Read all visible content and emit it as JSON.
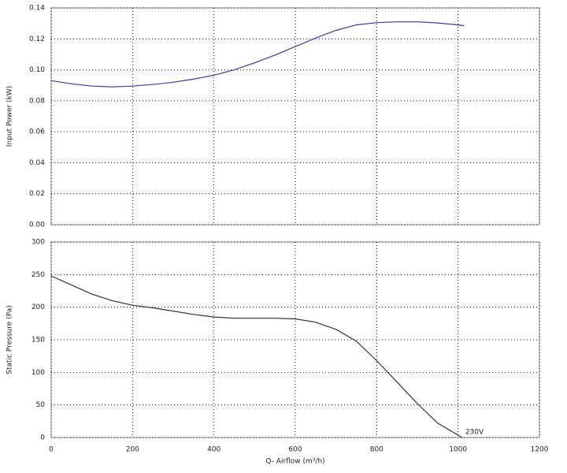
{
  "chart_data": [
    {
      "type": "line",
      "ylabel": "Input Power (kW)",
      "xlim": [
        0,
        1200
      ],
      "ylim": [
        0,
        0.14
      ],
      "yticks": [
        {
          "value": 0,
          "label": "0.00"
        },
        0.02,
        0.04,
        0.06,
        0.08,
        {
          "value": 0.1,
          "label": "0.10"
        },
        0.12,
        0.14
      ],
      "grid": true,
      "x": [
        0,
        50,
        100,
        150,
        200,
        250,
        300,
        350,
        400,
        450,
        500,
        550,
        600,
        650,
        700,
        750,
        800,
        850,
        900,
        950,
        1000,
        1015
      ],
      "series": [
        {
          "color": "#3a3a9e",
          "values": [
            0.093,
            0.091,
            0.0895,
            0.089,
            0.0895,
            0.0905,
            0.092,
            0.094,
            0.0965,
            0.1,
            0.1045,
            0.1095,
            0.115,
            0.1205,
            0.1255,
            0.129,
            0.1305,
            0.131,
            0.131,
            0.1303,
            0.129,
            0.1285
          ]
        }
      ]
    },
    {
      "type": "line",
      "ylabel": "Static Pressure (Pa)",
      "xlabel": "Q- Airflow (m³/h)",
      "xlim": [
        0,
        1200
      ],
      "ylim": [
        0,
        300
      ],
      "xticks": [
        0,
        200,
        400,
        600,
        800,
        1000,
        1200
      ],
      "yticks": [
        0,
        50,
        100,
        150,
        200,
        250,
        300
      ],
      "grid": true,
      "x": [
        0,
        50,
        100,
        150,
        200,
        250,
        300,
        350,
        400,
        450,
        500,
        550,
        600,
        650,
        700,
        750,
        800,
        850,
        900,
        950,
        1010
      ],
      "series": [
        {
          "color": "#333333",
          "values": [
            248,
            234,
            220,
            210,
            203,
            199,
            194,
            189,
            185,
            183,
            183,
            183,
            182,
            177,
            166,
            148,
            118,
            85,
            52,
            22,
            0
          ]
        }
      ],
      "annotation": "230V"
    }
  ]
}
